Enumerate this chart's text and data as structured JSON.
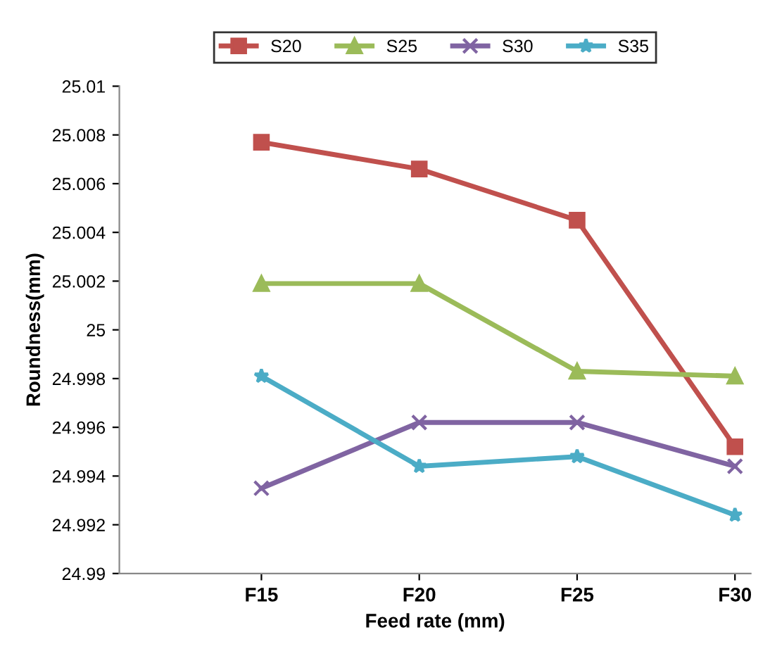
{
  "chart_data": {
    "type": "line",
    "xlabel": "Feed rate (mm)",
    "ylabel": "Roundness(mm)",
    "categories": [
      "F15",
      "F20",
      "F25",
      "F30"
    ],
    "series": [
      {
        "name": "S20",
        "color": "#c0504d",
        "marker": "square",
        "values": [
          25.0077,
          25.0066,
          25.0045,
          24.9952
        ]
      },
      {
        "name": "S25",
        "color": "#9bbb59",
        "marker": "triangle",
        "values": [
          25.0019,
          25.0019,
          24.9983,
          24.9981
        ]
      },
      {
        "name": "S30",
        "color": "#8064a2",
        "marker": "cross",
        "values": [
          24.9935,
          24.9962,
          24.9962,
          24.9944
        ]
      },
      {
        "name": "S35",
        "color": "#4bacc6",
        "marker": "star",
        "values": [
          24.9981,
          24.9944,
          24.9948,
          24.9924
        ]
      }
    ],
    "ylim": [
      24.99,
      25.01
    ],
    "yticks": [
      24.99,
      24.992,
      24.994,
      24.996,
      24.998,
      25,
      25.002,
      25.004,
      25.006,
      25.008,
      25.01
    ],
    "grid": false,
    "legend": "top",
    "line_style": "solid"
  }
}
